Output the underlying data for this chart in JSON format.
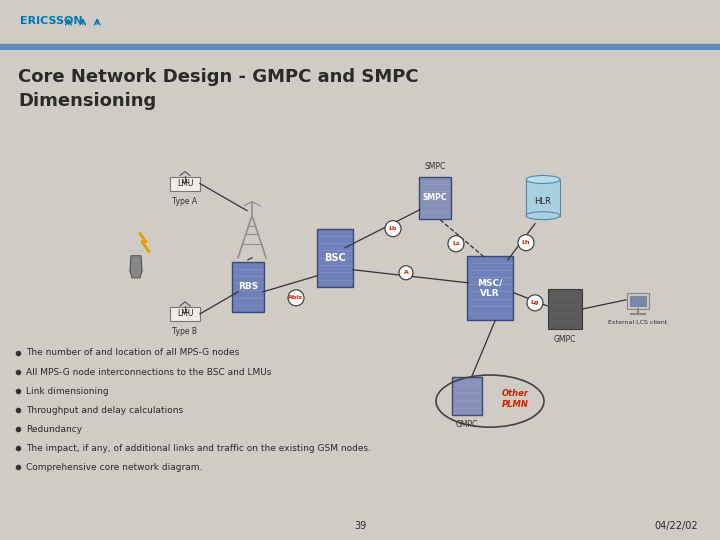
{
  "bg_color": "#d0cbc4",
  "header_bg": "#ffffff",
  "header_bar_color": "#5b8db8",
  "footer_bg": "#b8b3ac",
  "ericsson_text": "ERICSSON",
  "ericsson_color": "#0077b3",
  "title_line1": "Core Network Design - GMPC and SMPC",
  "title_line2": "Dimensioning",
  "title_color": "#2a2a2a",
  "title_fontsize": 13,
  "bullets": [
    "The number of and location of all MPS-G nodes",
    "All MPS-G node interconnections to the BSC and LMUs",
    "Link dimensioning",
    "Throughput and delay calculations",
    "Redundancy",
    "The impact, if any, of additional links and traffic on the existing GSM nodes.",
    "Comprehensive core network diagram."
  ],
  "bullet_fontsize": 6.5,
  "bullet_color": "#2a2a2a",
  "page_num": "39",
  "page_date": "04/22/02",
  "footer_text_color": "#2a2a2a",
  "node_box_color": "#7080b8",
  "node_box_edge": "#4a5a8a",
  "label_LMU": "LMU",
  "label_TypeA": "Type A",
  "label_TypeB": "Type B",
  "label_RBS": "RBS",
  "label_BSC": "BSC",
  "label_SMPC": "SMPC",
  "label_HLR": "HLR",
  "label_MSC_VLR": "MSC/\nVLR",
  "label_GMPC": "GMPC",
  "label_GMPC2": "GMPC",
  "label_OtherPLMN": "Other\nPLMN",
  "label_ExtLCS": "External LCS client",
  "iface_Lb": "Lb",
  "iface_Ls": "Ls",
  "iface_Lh": "Lh",
  "iface_A": "A",
  "iface_Abis": "Abis",
  "iface_Lg": "Lg",
  "iface_color": "#cc2200",
  "other_plmn_color": "#cc2200",
  "lightning_color": "#e8a000",
  "cable_color": "#333333"
}
